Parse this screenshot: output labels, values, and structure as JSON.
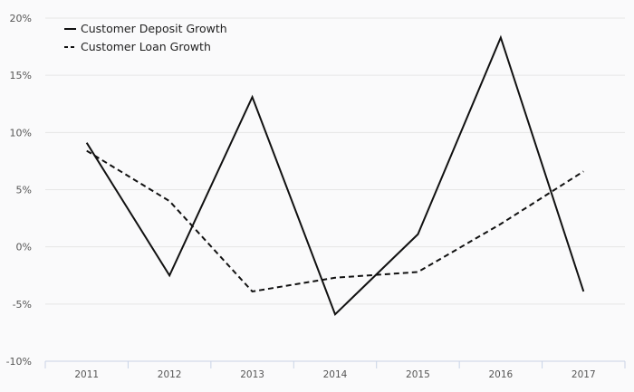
{
  "chart_data": {
    "type": "line",
    "categories": [
      "2011",
      "2012",
      "2013",
      "2014",
      "2015",
      "2016",
      "2017"
    ],
    "series": [
      {
        "name": "Customer Deposit Growth",
        "values": [
          9.1,
          -2.5,
          13.1,
          -5.9,
          1.1,
          18.3,
          -3.9
        ],
        "dash": "solid",
        "color": "#111111"
      },
      {
        "name": "Customer Loan Growth",
        "values": [
          8.4,
          4.0,
          -3.9,
          -2.7,
          -2.2,
          2.0,
          6.6
        ],
        "dash": "dashed",
        "color": "#111111"
      }
    ],
    "xlabel": "",
    "ylabel": "",
    "ylim": [
      -10,
      20
    ],
    "y_ticks": [
      20,
      15,
      10,
      5,
      0,
      -5,
      -10
    ],
    "y_tick_labels": [
      "20%",
      "15%",
      "10%",
      "5%",
      "0%",
      "-5%",
      "-10%"
    ],
    "grid": true,
    "legend_position": "top-left"
  },
  "colors": {
    "background": "#fafafb",
    "grid": "#e6e6e6",
    "axis": "#c9d3e6",
    "text": "#555555"
  }
}
